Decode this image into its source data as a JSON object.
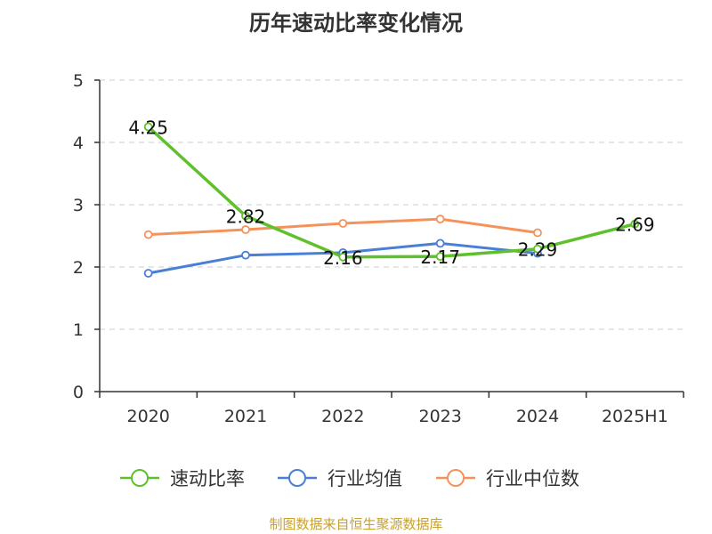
{
  "title": "历年速动比率变化情况",
  "source": "制图数据来自恒生聚源数据库",
  "colors": {
    "quick_ratio": "#5ec12b",
    "industry_mean": "#4a7fd6",
    "industry_median": "#f5925a",
    "grid": "#cccccc",
    "axis": "#333333"
  },
  "chart_data": {
    "type": "line",
    "title": "历年速动比率变化情况",
    "categories": [
      "2020",
      "2021",
      "2022",
      "2023",
      "2024",
      "2025H1"
    ],
    "ylim": [
      0,
      5
    ],
    "yticks": [
      0,
      1,
      2,
      3,
      4,
      5
    ],
    "grid": "horizontal-dashed",
    "legend_position": "bottom",
    "series": [
      {
        "name": "速动比率",
        "color": "#5ec12b",
        "values": [
          4.25,
          2.82,
          2.16,
          2.17,
          2.29,
          2.69
        ],
        "labels": [
          "4.25",
          "2.82",
          "2.16",
          "2.17",
          "2.29",
          "2.69"
        ]
      },
      {
        "name": "行业均值",
        "color": "#4a7fd6",
        "values": [
          1.9,
          2.19,
          2.23,
          2.38,
          2.22,
          null
        ]
      },
      {
        "name": "行业中位数",
        "color": "#f5925a",
        "values": [
          2.52,
          2.6,
          2.7,
          2.77,
          2.55,
          null
        ]
      }
    ]
  }
}
